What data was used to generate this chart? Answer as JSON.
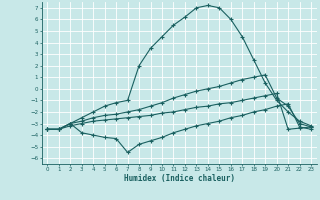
{
  "bg_color": "#c8e8e8",
  "grid_color": "#b0d8d8",
  "line_color": "#1a6060",
  "xlabel": "Humidex (Indice chaleur)",
  "xlim": [
    -0.5,
    23.5
  ],
  "ylim": [
    -6.5,
    7.5
  ],
  "xticks": [
    0,
    1,
    2,
    3,
    4,
    5,
    6,
    7,
    8,
    9,
    10,
    11,
    12,
    13,
    14,
    15,
    16,
    17,
    18,
    19,
    20,
    21,
    22,
    23
  ],
  "yticks": [
    -6,
    -5,
    -4,
    -3,
    -2,
    -1,
    0,
    1,
    2,
    3,
    4,
    5,
    6,
    7
  ],
  "series": [
    {
      "x": [
        0,
        1,
        2,
        3,
        4,
        5,
        6,
        7,
        8,
        9,
        10,
        11,
        12,
        13,
        14,
        15,
        16,
        17,
        18,
        19,
        20,
        21,
        22,
        23
      ],
      "y": [
        -3.5,
        -3.5,
        -3.0,
        -2.5,
        -2.0,
        -1.5,
        -1.2,
        -1.0,
        2.0,
        3.5,
        4.5,
        5.5,
        6.2,
        7.0,
        7.2,
        7.0,
        6.0,
        4.5,
        2.5,
        0.5,
        -1.0,
        -2.0,
        -2.8,
        -3.2
      ]
    },
    {
      "x": [
        0,
        1,
        2,
        3,
        4,
        5,
        6,
        7,
        8,
        9,
        10,
        11,
        12,
        13,
        14,
        15,
        16,
        17,
        18,
        19,
        20,
        21,
        22,
        23
      ],
      "y": [
        -3.5,
        -3.5,
        -3.0,
        -2.8,
        -2.5,
        -2.3,
        -2.2,
        -2.0,
        -1.8,
        -1.5,
        -1.2,
        -0.8,
        -0.5,
        -0.2,
        0.0,
        0.2,
        0.5,
        0.8,
        1.0,
        1.2,
        -0.8,
        -1.5,
        -3.0,
        -3.3
      ]
    },
    {
      "x": [
        0,
        1,
        2,
        3,
        4,
        5,
        6,
        7,
        8,
        9,
        10,
        11,
        12,
        13,
        14,
        15,
        16,
        17,
        18,
        19,
        20,
        21,
        22,
        23
      ],
      "y": [
        -3.5,
        -3.5,
        -3.2,
        -3.0,
        -2.8,
        -2.7,
        -2.6,
        -2.5,
        -2.4,
        -2.3,
        -2.1,
        -2.0,
        -1.8,
        -1.6,
        -1.5,
        -1.3,
        -1.2,
        -1.0,
        -0.8,
        -0.6,
        -0.4,
        -3.5,
        -3.4,
        -3.3
      ]
    },
    {
      "x": [
        0,
        1,
        2,
        3,
        4,
        5,
        6,
        7,
        8,
        9,
        10,
        11,
        12,
        13,
        14,
        15,
        16,
        17,
        18,
        19,
        20,
        21,
        22,
        23
      ],
      "y": [
        -3.5,
        -3.5,
        -3.0,
        -3.8,
        -4.0,
        -4.2,
        -4.3,
        -5.5,
        -4.8,
        -4.5,
        -4.2,
        -3.8,
        -3.5,
        -3.2,
        -3.0,
        -2.8,
        -2.5,
        -2.3,
        -2.0,
        -1.8,
        -1.5,
        -1.3,
        -3.3,
        -3.5
      ]
    }
  ]
}
